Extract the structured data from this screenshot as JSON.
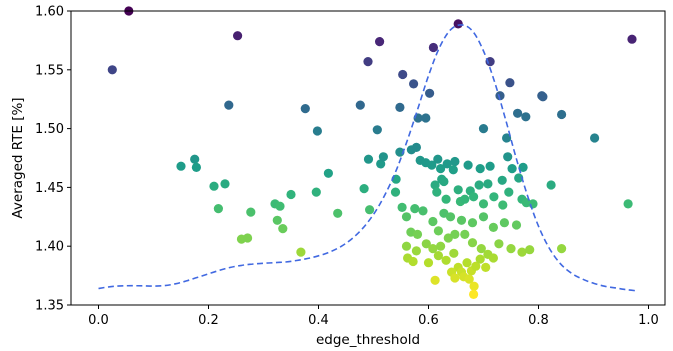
{
  "chart_data": {
    "type": "scatter",
    "title": "",
    "xlabel": "edge_threshold",
    "ylabel": "Averaged RTE [%]",
    "xlim": [
      -0.05,
      1.03
    ],
    "ylim": [
      1.35,
      1.6
    ],
    "x_ticks": [
      0.0,
      0.2,
      0.4,
      0.6,
      0.8,
      1.0
    ],
    "x_tick_labels": [
      "0.0",
      "0.2",
      "0.4",
      "0.6",
      "0.8",
      "1.0"
    ],
    "y_ticks": [
      1.35,
      1.4,
      1.45,
      1.5,
      1.55,
      1.6
    ],
    "y_tick_labels": [
      "1.35",
      "1.40",
      "1.45",
      "1.50",
      "1.55",
      "1.60"
    ],
    "grid": false,
    "legend": "none",
    "colormap": "viridis (color mapped to y value; high = dark purple, low = yellow)",
    "points": [
      [
        0.055,
        1.6
      ],
      [
        0.025,
        1.55
      ],
      [
        0.253,
        1.579
      ],
      [
        0.237,
        1.52
      ],
      [
        0.376,
        1.517
      ],
      [
        0.398,
        1.498
      ],
      [
        0.15,
        1.468
      ],
      [
        0.175,
        1.474
      ],
      [
        0.178,
        1.467
      ],
      [
        0.21,
        1.451
      ],
      [
        0.23,
        1.453
      ],
      [
        0.218,
        1.432
      ],
      [
        0.277,
        1.429
      ],
      [
        0.26,
        1.406
      ],
      [
        0.271,
        1.407
      ],
      [
        0.321,
        1.436
      ],
      [
        0.33,
        1.434
      ],
      [
        0.325,
        1.422
      ],
      [
        0.335,
        1.415
      ],
      [
        0.35,
        1.444
      ],
      [
        0.368,
        1.395
      ],
      [
        0.396,
        1.446
      ],
      [
        0.418,
        1.462
      ],
      [
        0.435,
        1.428
      ],
      [
        0.476,
        1.52
      ],
      [
        0.49,
        1.557
      ],
      [
        0.511,
        1.574
      ],
      [
        0.507,
        1.499
      ],
      [
        0.491,
        1.474
      ],
      [
        0.483,
        1.449
      ],
      [
        0.493,
        1.431
      ],
      [
        0.513,
        1.47
      ],
      [
        0.518,
        1.476
      ],
      [
        0.553,
        1.546
      ],
      [
        0.573,
        1.538
      ],
      [
        0.548,
        1.518
      ],
      [
        0.581,
        1.509
      ],
      [
        0.595,
        1.509
      ],
      [
        0.602,
        1.53
      ],
      [
        0.609,
        1.569
      ],
      [
        0.654,
        1.589
      ],
      [
        0.712,
        1.557
      ],
      [
        0.97,
        1.576
      ],
      [
        0.569,
        1.482
      ],
      [
        0.578,
        1.484
      ],
      [
        0.585,
        1.473
      ],
      [
        0.595,
        1.471
      ],
      [
        0.606,
        1.469
      ],
      [
        0.617,
        1.474
      ],
      [
        0.622,
        1.466
      ],
      [
        0.634,
        1.47
      ],
      [
        0.648,
        1.472
      ],
      [
        0.672,
        1.469
      ],
      [
        0.694,
        1.466
      ],
      [
        0.712,
        1.468
      ],
      [
        0.744,
        1.476
      ],
      [
        0.752,
        1.466
      ],
      [
        0.772,
        1.467
      ],
      [
        0.7,
        1.5
      ],
      [
        0.742,
        1.492
      ],
      [
        0.73,
        1.528
      ],
      [
        0.748,
        1.539
      ],
      [
        0.762,
        1.513
      ],
      [
        0.777,
        1.51
      ],
      [
        0.806,
        1.528
      ],
      [
        0.808,
        1.527
      ],
      [
        0.842,
        1.512
      ],
      [
        0.902,
        1.492
      ],
      [
        0.548,
        1.48
      ],
      [
        0.541,
        1.457
      ],
      [
        0.54,
        1.446
      ],
      [
        0.612,
        1.452
      ],
      [
        0.624,
        1.457
      ],
      [
        0.628,
        1.455
      ],
      [
        0.645,
        1.465
      ],
      [
        0.654,
        1.448
      ],
      [
        0.676,
        1.447
      ],
      [
        0.692,
        1.452
      ],
      [
        0.708,
        1.453
      ],
      [
        0.734,
        1.456
      ],
      [
        0.746,
        1.446
      ],
      [
        0.764,
        1.458
      ],
      [
        0.823,
        1.452
      ],
      [
        0.615,
        1.446
      ],
      [
        0.632,
        1.44
      ],
      [
        0.658,
        1.438
      ],
      [
        0.666,
        1.44
      ],
      [
        0.682,
        1.442
      ],
      [
        0.7,
        1.436
      ],
      [
        0.719,
        1.442
      ],
      [
        0.735,
        1.435
      ],
      [
        0.77,
        1.44
      ],
      [
        0.778,
        1.437
      ],
      [
        0.79,
        1.436
      ],
      [
        0.963,
        1.436
      ],
      [
        0.552,
        1.433
      ],
      [
        0.56,
        1.425
      ],
      [
        0.575,
        1.432
      ],
      [
        0.59,
        1.43
      ],
      [
        0.608,
        1.421
      ],
      [
        0.618,
        1.413
      ],
      [
        0.628,
        1.428
      ],
      [
        0.64,
        1.425
      ],
      [
        0.66,
        1.422
      ],
      [
        0.68,
        1.42
      ],
      [
        0.7,
        1.425
      ],
      [
        0.718,
        1.416
      ],
      [
        0.738,
        1.42
      ],
      [
        0.76,
        1.418
      ],
      [
        0.568,
        1.412
      ],
      [
        0.58,
        1.41
      ],
      [
        0.596,
        1.402
      ],
      [
        0.608,
        1.398
      ],
      [
        0.622,
        1.4
      ],
      [
        0.636,
        1.407
      ],
      [
        0.648,
        1.41
      ],
      [
        0.666,
        1.41
      ],
      [
        0.68,
        1.403
      ],
      [
        0.696,
        1.398
      ],
      [
        0.708,
        1.393
      ],
      [
        0.728,
        1.402
      ],
      [
        0.75,
        1.398
      ],
      [
        0.77,
        1.395
      ],
      [
        0.784,
        1.397
      ],
      [
        0.842,
        1.398
      ],
      [
        0.56,
        1.4
      ],
      [
        0.578,
        1.396
      ],
      [
        0.6,
        1.386
      ],
      [
        0.618,
        1.392
      ],
      [
        0.632,
        1.388
      ],
      [
        0.646,
        1.394
      ],
      [
        0.654,
        1.382
      ],
      [
        0.66,
        1.378
      ],
      [
        0.67,
        1.386
      ],
      [
        0.678,
        1.379
      ],
      [
        0.686,
        1.383
      ],
      [
        0.694,
        1.389
      ],
      [
        0.704,
        1.382
      ],
      [
        0.718,
        1.39
      ],
      [
        0.562,
        1.39
      ],
      [
        0.572,
        1.387
      ],
      [
        0.612,
        1.371
      ],
      [
        0.642,
        1.378
      ],
      [
        0.648,
        1.373
      ],
      [
        0.664,
        1.374
      ],
      [
        0.674,
        1.372
      ],
      [
        0.683,
        1.366
      ],
      [
        0.682,
        1.359
      ]
    ],
    "density_line": {
      "style": "dashed",
      "color": "#4169e1",
      "x": [
        0.0,
        0.02,
        0.04,
        0.06,
        0.08,
        0.1,
        0.12,
        0.14,
        0.16,
        0.18,
        0.2,
        0.22,
        0.24,
        0.26,
        0.28,
        0.3,
        0.32,
        0.34,
        0.36,
        0.38,
        0.4,
        0.42,
        0.44,
        0.46,
        0.48,
        0.5,
        0.52,
        0.54,
        0.56,
        0.58,
        0.6,
        0.62,
        0.64,
        0.66,
        0.68,
        0.7,
        0.72,
        0.74,
        0.76,
        0.78,
        0.8,
        0.82,
        0.84,
        0.86,
        0.88,
        0.9,
        0.92,
        0.94,
        0.96,
        0.98
      ],
      "y": [
        1.364,
        1.3655,
        1.3662,
        1.3664,
        1.3663,
        1.3661,
        1.3665,
        1.368,
        1.3705,
        1.3735,
        1.3765,
        1.3795,
        1.382,
        1.3837,
        1.3848,
        1.3855,
        1.386,
        1.3866,
        1.3878,
        1.3895,
        1.3918,
        1.395,
        1.3995,
        1.406,
        1.415,
        1.427,
        1.443,
        1.463,
        1.488,
        1.516,
        1.545,
        1.569,
        1.584,
        1.5882,
        1.583,
        1.566,
        1.54,
        1.508,
        1.474,
        1.443,
        1.417,
        1.398,
        1.385,
        1.377,
        1.372,
        1.3685,
        1.366,
        1.3645,
        1.363,
        1.362
      ]
    }
  }
}
